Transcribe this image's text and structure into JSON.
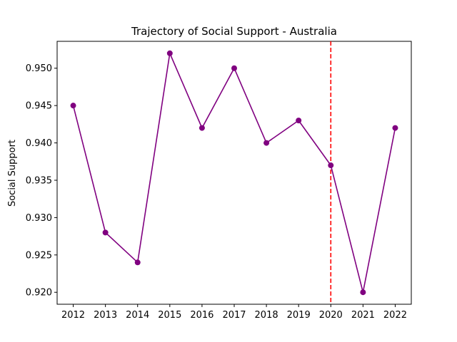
{
  "chart_data": {
    "type": "line",
    "title": "Trajectory of Social Support - Australia",
    "xlabel": "",
    "ylabel": "Social Support",
    "x": [
      2012,
      2013,
      2014,
      2015,
      2016,
      2017,
      2018,
      2019,
      2020,
      2021,
      2022
    ],
    "series": [
      {
        "values": [
          0.945,
          0.928,
          0.924,
          0.952,
          0.942,
          0.95,
          0.94,
          0.943,
          0.937,
          0.92,
          0.942
        ],
        "color": "#800080",
        "marker": "circle"
      }
    ],
    "xticks": [
      "2012",
      "2013",
      "2014",
      "2015",
      "2016",
      "2017",
      "2018",
      "2019",
      "2020",
      "2021",
      "2022"
    ],
    "yticks": [
      "0.920",
      "0.925",
      "0.930",
      "0.935",
      "0.940",
      "0.945",
      "0.950"
    ],
    "yticks_values": [
      0.92,
      0.925,
      0.93,
      0.935,
      0.94,
      0.945,
      0.95
    ],
    "ylim": [
      0.9184,
      0.9536
    ],
    "xlim": [
      2011.5,
      2022.5
    ],
    "grid": false,
    "reference_line": {
      "orientation": "vertical",
      "x": 2020,
      "color": "#ff0000",
      "style": "dashed"
    }
  }
}
